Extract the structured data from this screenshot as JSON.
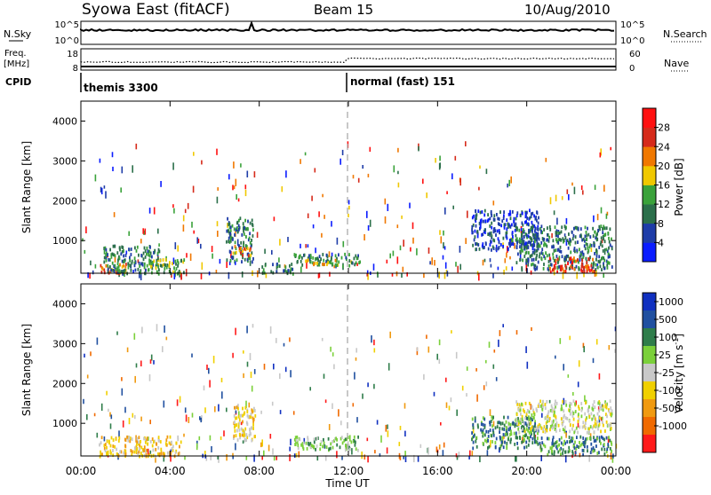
{
  "header": {
    "station": "Syowa East (fitACF)",
    "beam": "Beam 15",
    "date": "10/Aug/2010"
  },
  "noise_panel": {
    "left_label": "N.Sky",
    "right_label": "N.Search",
    "left_ticks": [
      "10^5",
      "10^0"
    ],
    "right_ticks": [
      "10^5",
      "10^0"
    ]
  },
  "freq_panel": {
    "left_label_1": "Freq.",
    "left_label_2": "[MHz]",
    "right_label": "Nave",
    "left_ticks": [
      "18",
      "8"
    ],
    "right_ticks": [
      "60",
      "0"
    ]
  },
  "cpid_panel": {
    "label": "CPID",
    "modes": [
      {
        "name": "themis 3300",
        "start_hour": 0
      },
      {
        "name": "normal (fast) 151",
        "start_hour": 12
      }
    ]
  },
  "time_axis": {
    "label": "Time UT",
    "ticks": [
      "00:00",
      "04:00",
      "08:00",
      "12:00",
      "16:00",
      "20:00",
      "00:00"
    ],
    "range_hours": [
      0,
      24
    ]
  },
  "range_axis": {
    "label": "Slant Range [km]",
    "ticks": [
      "1000",
      "2000",
      "3000",
      "4000"
    ],
    "range_km": [
      180,
      4500
    ]
  },
  "power_colorbar": {
    "label": "Power [dB]",
    "ticks": [
      "4",
      "8",
      "12",
      "16",
      "20",
      "24",
      "28"
    ],
    "colors": [
      "#0a1cff",
      "#1e3ca8",
      "#2b6f4a",
      "#3aa23a",
      "#f0c800",
      "#f07800",
      "#d62a1a",
      "#ff1010"
    ]
  },
  "velocity_colorbar": {
    "label": "Velocity [m s",
    "label_sup": "-1",
    "label_end": "]",
    "ticks": [
      "1000",
      "500",
      "100",
      "25",
      "-25",
      "-100",
      "-500",
      "-1000"
    ],
    "colors": [
      "#1030c0",
      "#2050a0",
      "#2f7d4a",
      "#7bd03a",
      "#c8c8c8",
      "#f0d000",
      "#f09a10",
      "#f06a00",
      "#ff1a1a"
    ]
  },
  "chart_data": [
    {
      "type": "heatmap",
      "title": "Power",
      "xlabel": "Time UT",
      "ylabel": "Slant Range [km]",
      "xlim": [
        0,
        24
      ],
      "ylim": [
        180,
        4500
      ],
      "colorbar_label": "Power [dB]",
      "regions": [
        {
          "t": [
            0.8,
            2.0
          ],
          "r": [
            200,
            450
          ],
          "level": 5
        },
        {
          "t": [
            1.0,
            3.5
          ],
          "r": [
            200,
            900
          ],
          "level": 2
        },
        {
          "t": [
            3.0,
            4.6
          ],
          "r": [
            200,
            600
          ],
          "level": 3
        },
        {
          "t": [
            6.5,
            7.7
          ],
          "r": [
            500,
            1600
          ],
          "level": 2
        },
        {
          "t": [
            6.8,
            7.6
          ],
          "r": [
            650,
            900
          ],
          "level": 5
        },
        {
          "t": [
            8.0,
            9.5
          ],
          "r": [
            200,
            450
          ],
          "level": 2
        },
        {
          "t": [
            9.5,
            12.5
          ],
          "r": [
            400,
            700
          ],
          "level": 2
        },
        {
          "t": [
            10.0,
            11.5
          ],
          "r": [
            420,
            560
          ],
          "level": 4
        },
        {
          "t": [
            17.5,
            20.5
          ],
          "r": [
            800,
            1800
          ],
          "level": 1
        },
        {
          "t": [
            19.5,
            23.8
          ],
          "r": [
            300,
            1400
          ],
          "level": 2
        },
        {
          "t": [
            21.0,
            23.0
          ],
          "r": [
            250,
            600
          ],
          "level": 6
        }
      ],
      "dashed_vertical_at_hours": [
        12
      ]
    },
    {
      "type": "heatmap",
      "title": "Velocity",
      "xlabel": "Time UT",
      "ylabel": "Slant Range [km]",
      "xlim": [
        0,
        24
      ],
      "ylim": [
        180,
        4500
      ],
      "colorbar_label": "Velocity [m s-1]",
      "regions": [
        {
          "t": [
            0.8,
            4.5
          ],
          "r": [
            200,
            700
          ],
          "level": 5
        },
        {
          "t": [
            6.8,
            7.8
          ],
          "r": [
            600,
            1500
          ],
          "level": 5
        },
        {
          "t": [
            7.0,
            7.8
          ],
          "r": [
            700,
            900
          ],
          "level": 5
        },
        {
          "t": [
            9.5,
            12.5
          ],
          "r": [
            350,
            700
          ],
          "level": 3
        },
        {
          "t": [
            17.5,
            20.5
          ],
          "r": [
            400,
            1200
          ],
          "level": 2
        },
        {
          "t": [
            19.5,
            23.8
          ],
          "r": [
            800,
            1600
          ],
          "level": 4
        },
        {
          "t": [
            20.5,
            23.8
          ],
          "r": [
            250,
            700
          ],
          "level": 2
        }
      ],
      "dashed_vertical_at_hours": [
        12
      ]
    }
  ]
}
